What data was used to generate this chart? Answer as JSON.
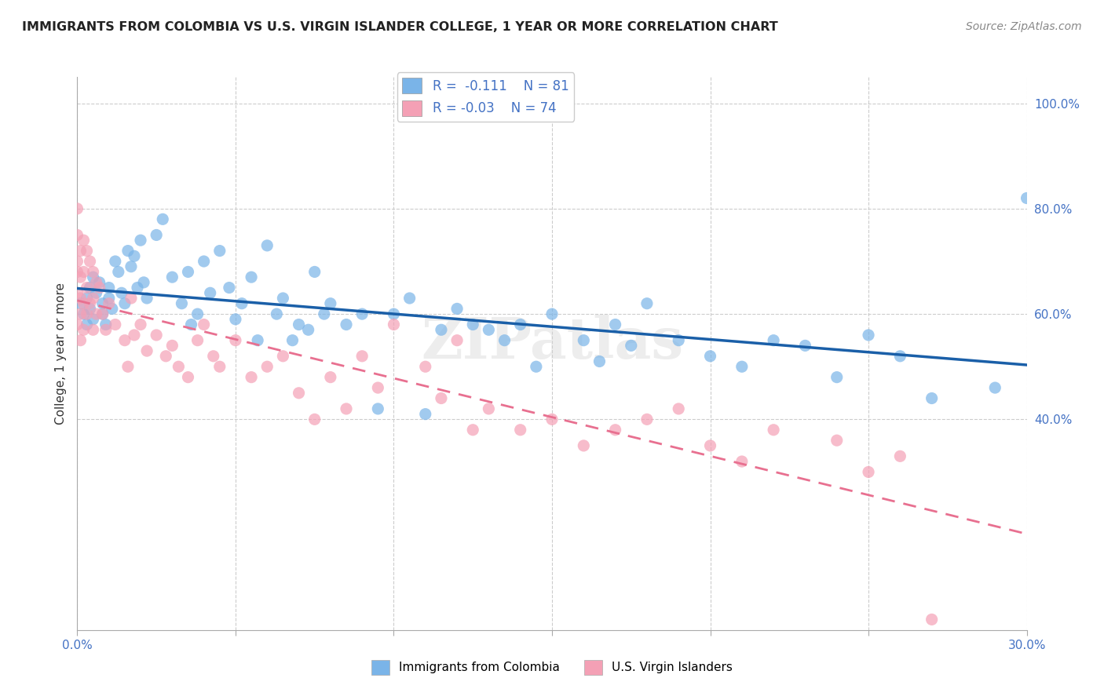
{
  "title": "IMMIGRANTS FROM COLOMBIA VS U.S. VIRGIN ISLANDER COLLEGE, 1 YEAR OR MORE CORRELATION CHART",
  "source": "Source: ZipAtlas.com",
  "ylabel": "College, 1 year or more",
  "xlabel": "",
  "xlim": [
    0.0,
    0.3
  ],
  "ylim": [
    0.0,
    1.05
  ],
  "xticks": [
    0.0,
    0.05,
    0.1,
    0.15,
    0.2,
    0.25,
    0.3
  ],
  "xtick_labels": [
    "0.0%",
    "",
    "",
    "",
    "",
    "",
    "30.0%"
  ],
  "ytick_labels_right": [
    "40.0%",
    "60.0%",
    "80.0%",
    "100.0%"
  ],
  "ytick_positions_right": [
    0.4,
    0.6,
    0.8,
    1.0
  ],
  "blue_R": -0.111,
  "blue_N": 81,
  "pink_R": -0.03,
  "pink_N": 74,
  "blue_color": "#7ab4e8",
  "pink_color": "#f4a0b5",
  "blue_line_color": "#1a5fa8",
  "pink_line_color": "#e87090",
  "watermark": "ZIPatlas",
  "legend_label_blue": "Immigrants from Colombia",
  "legend_label_pink": "U.S. Virgin Islanders",
  "blue_x": [
    0.001,
    0.002,
    0.003,
    0.003,
    0.004,
    0.004,
    0.005,
    0.005,
    0.006,
    0.007,
    0.008,
    0.008,
    0.009,
    0.01,
    0.01,
    0.011,
    0.012,
    0.013,
    0.014,
    0.015,
    0.016,
    0.017,
    0.018,
    0.019,
    0.02,
    0.021,
    0.022,
    0.025,
    0.027,
    0.03,
    0.033,
    0.035,
    0.036,
    0.038,
    0.04,
    0.042,
    0.045,
    0.048,
    0.05,
    0.052,
    0.055,
    0.057,
    0.06,
    0.063,
    0.065,
    0.068,
    0.07,
    0.073,
    0.075,
    0.078,
    0.08,
    0.085,
    0.09,
    0.095,
    0.1,
    0.105,
    0.11,
    0.115,
    0.12,
    0.125,
    0.13,
    0.135,
    0.14,
    0.145,
    0.15,
    0.16,
    0.165,
    0.17,
    0.175,
    0.18,
    0.19,
    0.2,
    0.21,
    0.22,
    0.23,
    0.24,
    0.25,
    0.26,
    0.27,
    0.29,
    0.3
  ],
  "blue_y": [
    0.62,
    0.6,
    0.63,
    0.58,
    0.65,
    0.61,
    0.67,
    0.59,
    0.64,
    0.66,
    0.6,
    0.62,
    0.58,
    0.65,
    0.63,
    0.61,
    0.7,
    0.68,
    0.64,
    0.62,
    0.72,
    0.69,
    0.71,
    0.65,
    0.74,
    0.66,
    0.63,
    0.75,
    0.78,
    0.67,
    0.62,
    0.68,
    0.58,
    0.6,
    0.7,
    0.64,
    0.72,
    0.65,
    0.59,
    0.62,
    0.67,
    0.55,
    0.73,
    0.6,
    0.63,
    0.55,
    0.58,
    0.57,
    0.68,
    0.6,
    0.62,
    0.58,
    0.6,
    0.42,
    0.6,
    0.63,
    0.41,
    0.57,
    0.61,
    0.58,
    0.57,
    0.55,
    0.58,
    0.5,
    0.6,
    0.55,
    0.51,
    0.58,
    0.54,
    0.62,
    0.55,
    0.52,
    0.5,
    0.55,
    0.54,
    0.48,
    0.56,
    0.52,
    0.44,
    0.46,
    0.82
  ],
  "pink_x": [
    0.0,
    0.0,
    0.0,
    0.0,
    0.0,
    0.0,
    0.001,
    0.001,
    0.001,
    0.001,
    0.001,
    0.002,
    0.002,
    0.002,
    0.002,
    0.003,
    0.003,
    0.003,
    0.004,
    0.004,
    0.005,
    0.005,
    0.005,
    0.006,
    0.006,
    0.007,
    0.008,
    0.009,
    0.01,
    0.012,
    0.015,
    0.016,
    0.017,
    0.018,
    0.02,
    0.022,
    0.025,
    0.028,
    0.03,
    0.032,
    0.035,
    0.038,
    0.04,
    0.043,
    0.045,
    0.05,
    0.055,
    0.06,
    0.065,
    0.07,
    0.075,
    0.08,
    0.085,
    0.09,
    0.095,
    0.1,
    0.11,
    0.115,
    0.12,
    0.125,
    0.13,
    0.14,
    0.15,
    0.16,
    0.17,
    0.18,
    0.19,
    0.2,
    0.21,
    0.22,
    0.24,
    0.25,
    0.26,
    0.27
  ],
  "pink_y": [
    0.8,
    0.75,
    0.7,
    0.68,
    0.64,
    0.58,
    0.72,
    0.67,
    0.63,
    0.6,
    0.55,
    0.74,
    0.68,
    0.62,
    0.57,
    0.72,
    0.65,
    0.6,
    0.7,
    0.62,
    0.68,
    0.63,
    0.57,
    0.66,
    0.6,
    0.65,
    0.6,
    0.57,
    0.62,
    0.58,
    0.55,
    0.5,
    0.63,
    0.56,
    0.58,
    0.53,
    0.56,
    0.52,
    0.54,
    0.5,
    0.48,
    0.55,
    0.58,
    0.52,
    0.5,
    0.55,
    0.48,
    0.5,
    0.52,
    0.45,
    0.4,
    0.48,
    0.42,
    0.52,
    0.46,
    0.58,
    0.5,
    0.44,
    0.55,
    0.38,
    0.42,
    0.38,
    0.4,
    0.35,
    0.38,
    0.4,
    0.42,
    0.35,
    0.32,
    0.38,
    0.36,
    0.3,
    0.33,
    0.02
  ]
}
